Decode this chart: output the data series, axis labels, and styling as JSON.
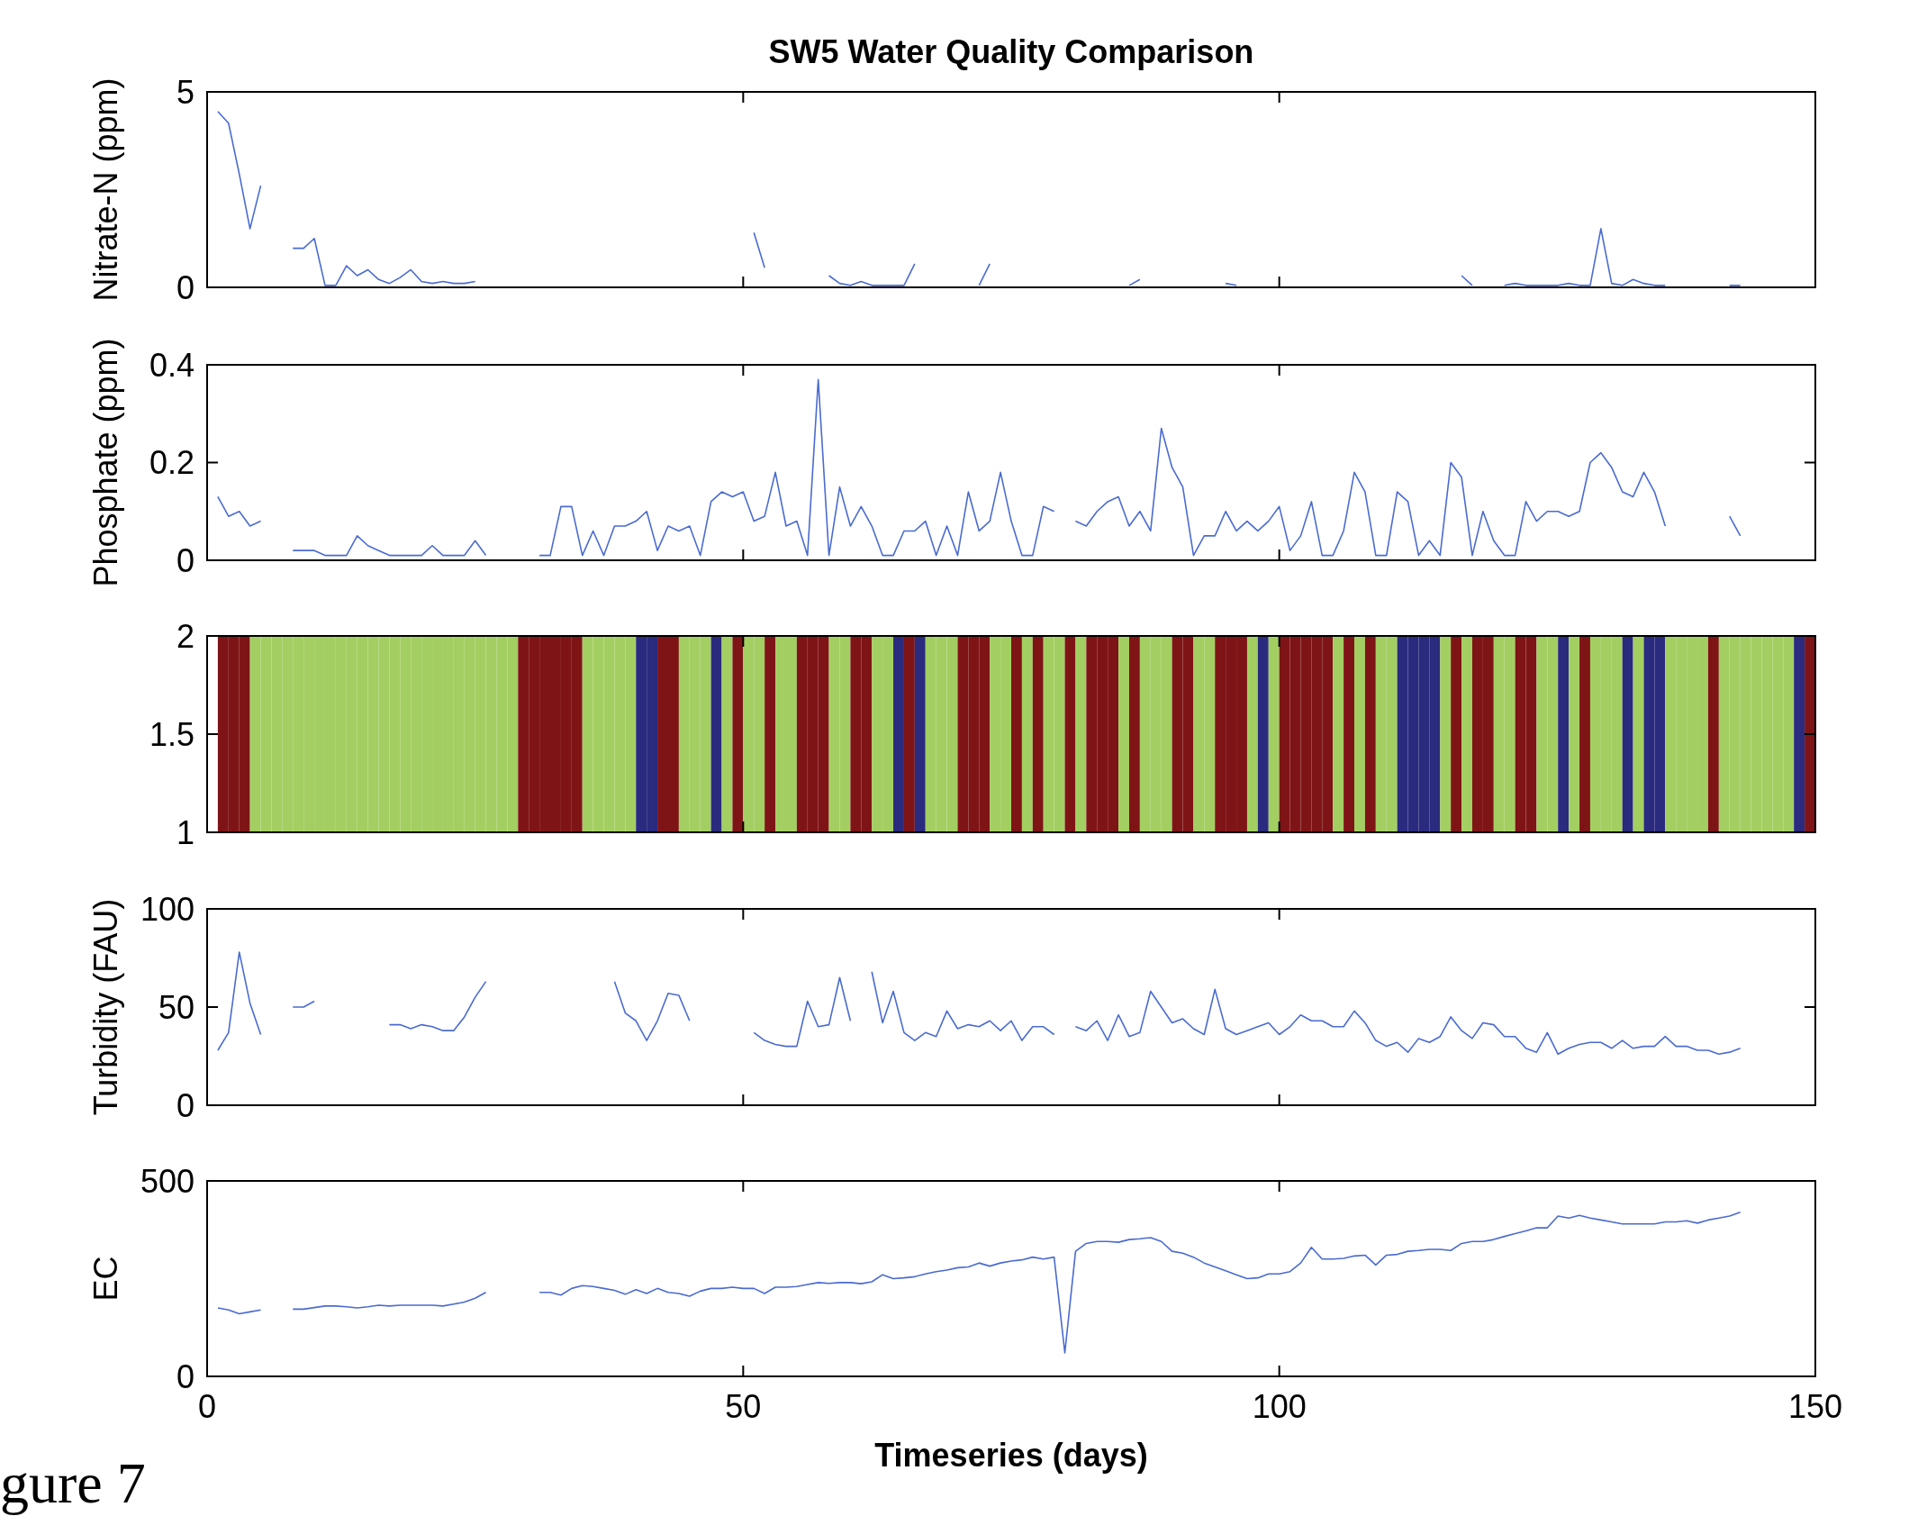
{
  "chart_data": [
    {
      "type": "line",
      "title": "SW5 Water Quality Comparison",
      "ylabel": "Nitrate-N (ppm)",
      "xlim": [
        0,
        150
      ],
      "xticks": [
        0,
        50,
        100,
        150
      ],
      "ylim": [
        0,
        5
      ],
      "yticks": [
        0,
        5
      ],
      "tick_labels": "y",
      "line_style": "solid",
      "x": [
        1,
        2,
        3,
        4,
        5,
        6,
        7,
        8,
        9,
        10,
        11,
        12,
        13,
        14,
        15,
        16,
        17,
        18,
        19,
        20,
        21,
        22,
        23,
        24,
        25,
        26,
        27,
        28,
        29,
        30,
        31,
        32,
        33,
        34,
        35,
        36,
        37,
        38,
        39,
        40,
        41,
        42,
        43,
        44,
        45,
        46,
        47,
        48,
        49,
        50,
        51,
        52,
        53,
        54,
        55,
        56,
        57,
        58,
        59,
        60,
        61,
        62,
        63,
        64,
        65,
        66,
        67,
        68,
        69,
        70,
        71,
        72,
        73,
        74,
        75,
        76,
        77,
        78,
        79,
        80,
        81,
        82,
        83,
        84,
        85,
        86,
        87,
        88,
        89,
        90,
        91,
        92,
        93,
        94,
        95,
        96,
        97,
        98,
        99,
        100,
        101,
        102,
        103,
        104,
        105,
        106,
        107,
        108,
        109,
        110,
        111,
        112,
        113,
        114,
        115,
        116,
        117,
        118,
        119,
        120,
        121,
        122,
        123,
        124,
        125,
        126,
        127,
        128,
        129,
        130,
        131,
        132,
        133,
        134,
        135,
        136,
        137,
        138,
        139,
        140,
        141,
        142,
        143
      ],
      "series": [
        {
          "color": "#4a6bd0",
          "values": [
            4.5,
            4.2,
            2.9,
            1.5,
            2.6,
            null,
            null,
            1.0,
            1.0,
            1.25,
            0.05,
            0.05,
            0.55,
            0.3,
            0.45,
            0.2,
            0.1,
            0.25,
            0.45,
            0.15,
            0.1,
            0.15,
            0.1,
            0.1,
            0.15,
            null,
            null,
            null,
            null,
            null,
            null,
            null,
            null,
            null,
            null,
            null,
            null,
            null,
            null,
            null,
            null,
            null,
            null,
            null,
            null,
            null,
            null,
            null,
            null,
            null,
            1.4,
            0.5,
            null,
            null,
            null,
            null,
            null,
            0.3,
            0.1,
            0.05,
            0.15,
            0.05,
            0.05,
            0.05,
            0.05,
            0.6,
            null,
            null,
            null,
            null,
            null,
            0.05,
            0.6,
            null,
            null,
            null,
            null,
            null,
            null,
            null,
            null,
            null,
            null,
            null,
            null,
            0.05,
            0.2,
            null,
            null,
            null,
            null,
            null,
            null,
            null,
            0.1,
            0.05,
            null,
            null,
            null,
            null,
            null,
            null,
            null,
            null,
            null,
            null,
            null,
            null,
            null,
            null,
            null,
            null,
            null,
            null,
            null,
            null,
            0.3,
            0.05,
            null,
            null,
            0.05,
            0.1,
            0.05,
            0.05,
            0.05,
            0.05,
            0.1,
            0.05,
            0.05,
            1.5,
            0.1,
            0.05,
            0.2,
            0.1,
            0.05,
            0.05,
            null,
            null,
            null,
            null,
            null,
            0.05,
            0.05
          ]
        }
      ]
    },
    {
      "type": "line",
      "ylabel": "Phosphate (ppm)",
      "xlim": [
        0,
        150
      ],
      "xticks": [
        0,
        50,
        100,
        150
      ],
      "ylim": [
        0,
        0.4
      ],
      "yticks": [
        0,
        0.2,
        0.4
      ],
      "tick_labels": "y",
      "line_style": "solid",
      "x": [
        1,
        2,
        3,
        4,
        5,
        6,
        7,
        8,
        9,
        10,
        11,
        12,
        13,
        14,
        15,
        16,
        17,
        18,
        19,
        20,
        21,
        22,
        23,
        24,
        25,
        26,
        27,
        28,
        29,
        30,
        31,
        32,
        33,
        34,
        35,
        36,
        37,
        38,
        39,
        40,
        41,
        42,
        43,
        44,
        45,
        46,
        47,
        48,
        49,
        50,
        51,
        52,
        53,
        54,
        55,
        56,
        57,
        58,
        59,
        60,
        61,
        62,
        63,
        64,
        65,
        66,
        67,
        68,
        69,
        70,
        71,
        72,
        73,
        74,
        75,
        76,
        77,
        78,
        79,
        80,
        81,
        82,
        83,
        84,
        85,
        86,
        87,
        88,
        89,
        90,
        91,
        92,
        93,
        94,
        95,
        96,
        97,
        98,
        99,
        100,
        101,
        102,
        103,
        104,
        105,
        106,
        107,
        108,
        109,
        110,
        111,
        112,
        113,
        114,
        115,
        116,
        117,
        118,
        119,
        120,
        121,
        122,
        123,
        124,
        125,
        126,
        127,
        128,
        129,
        130,
        131,
        132,
        133,
        134,
        135,
        136,
        137,
        138,
        139,
        140,
        141,
        142,
        143
      ],
      "series": [
        {
          "color": "#4a6bd0",
          "values": [
            0.13,
            0.09,
            0.1,
            0.07,
            0.08,
            null,
            null,
            0.02,
            0.02,
            0.02,
            0.01,
            0.01,
            0.01,
            0.05,
            0.03,
            0.02,
            0.01,
            0.01,
            0.01,
            0.01,
            0.03,
            0.01,
            0.01,
            0.01,
            0.04,
            0.01,
            null,
            null,
            null,
            null,
            0.01,
            0.01,
            0.11,
            0.11,
            0.01,
            0.06,
            0.01,
            0.07,
            0.07,
            0.08,
            0.1,
            0.02,
            0.07,
            0.06,
            0.07,
            0.01,
            0.12,
            0.14,
            0.13,
            0.14,
            0.08,
            0.09,
            0.18,
            0.07,
            0.08,
            0.01,
            0.37,
            0.01,
            0.15,
            0.07,
            0.11,
            0.07,
            0.01,
            0.01,
            0.06,
            0.06,
            0.08,
            0.01,
            0.07,
            0.01,
            0.14,
            0.06,
            0.08,
            0.18,
            0.08,
            0.01,
            0.01,
            0.11,
            0.1,
            null,
            0.08,
            0.07,
            0.1,
            0.12,
            0.13,
            0.07,
            0.1,
            0.06,
            0.27,
            0.19,
            0.15,
            0.01,
            0.05,
            0.05,
            0.1,
            0.06,
            0.08,
            0.06,
            0.08,
            0.11,
            0.02,
            0.05,
            0.12,
            0.01,
            0.01,
            0.06,
            0.18,
            0.14,
            0.01,
            0.01,
            0.14,
            0.12,
            0.01,
            0.04,
            0.01,
            0.2,
            0.17,
            0.01,
            0.1,
            0.04,
            0.01,
            0.01,
            0.12,
            0.08,
            0.1,
            0.1,
            0.09,
            0.1,
            0.2,
            0.22,
            0.19,
            0.14,
            0.13,
            0.18,
            0.14,
            0.07,
            null,
            null,
            null,
            null,
            null,
            0.09,
            0.05
          ]
        }
      ]
    },
    {
      "type": "bar",
      "xlim": [
        0,
        150
      ],
      "xticks": [
        0,
        50,
        100,
        150
      ],
      "ylim": [
        1,
        2
      ],
      "yticks": [
        1,
        1.5,
        2
      ],
      "tick_labels": "y",
      "x": [
        1,
        2,
        3,
        4,
        5,
        6,
        7,
        8,
        9,
        10,
        11,
        12,
        13,
        14,
        15,
        16,
        17,
        18,
        19,
        20,
        21,
        22,
        23,
        24,
        25,
        26,
        27,
        28,
        29,
        30,
        31,
        32,
        33,
        34,
        35,
        36,
        37,
        38,
        39,
        40,
        41,
        42,
        43,
        44,
        45,
        46,
        47,
        48,
        49,
        50,
        51,
        52,
        53,
        54,
        55,
        56,
        57,
        58,
        59,
        60,
        61,
        62,
        63,
        64,
        65,
        66,
        67,
        68,
        69,
        70,
        71,
        72,
        73,
        74,
        75,
        76,
        77,
        78,
        79,
        80,
        81,
        82,
        83,
        84,
        85,
        86,
        87,
        88,
        89,
        90,
        91,
        92,
        93,
        94,
        95,
        96,
        97,
        98,
        99,
        100,
        101,
        102,
        103,
        104,
        105,
        106,
        107,
        108,
        109,
        110,
        111,
        112,
        113,
        114,
        115,
        116,
        117,
        118,
        119,
        120,
        121,
        122,
        123,
        124,
        125,
        126,
        127,
        128,
        129,
        130,
        131,
        132,
        133,
        134,
        135,
        136,
        137,
        138,
        139,
        140,
        141,
        142,
        143,
        144,
        145,
        146,
        147,
        148,
        149
      ],
      "values": [
        2,
        2,
        2,
        2,
        2,
        2,
        2,
        2,
        2,
        2,
        2,
        2,
        2,
        2,
        2,
        2,
        2,
        2,
        2,
        2,
        2,
        2,
        2,
        2,
        2,
        2,
        2,
        2,
        2,
        2,
        2,
        2,
        2,
        2,
        2,
        2,
        2,
        2,
        2,
        2,
        2,
        2,
        2,
        2,
        2,
        2,
        2,
        2,
        2,
        2,
        2,
        2,
        2,
        2,
        2,
        2,
        2,
        2,
        2,
        2,
        2,
        2,
        2,
        2,
        2,
        2,
        2,
        2,
        2,
        2,
        2,
        2,
        2,
        2,
        2,
        2,
        2,
        2,
        2,
        2,
        2,
        2,
        2,
        2,
        2,
        2,
        2,
        2,
        2,
        2,
        2,
        2,
        2,
        2,
        2,
        2,
        2,
        2,
        2,
        2,
        2,
        2,
        2,
        2,
        2,
        2,
        2,
        2,
        2,
        2,
        2,
        2,
        2,
        2,
        2,
        2,
        2,
        2,
        2,
        2,
        2,
        2,
        2,
        2,
        2,
        2,
        2,
        2,
        2,
        2,
        2,
        2,
        2,
        2,
        2,
        2,
        2,
        2,
        2,
        2,
        2,
        2,
        2,
        2,
        2,
        2,
        2,
        2,
        2
      ],
      "colors": [
        "#7f1416",
        "#7f1416",
        "#7f1416",
        "#a3cf62",
        "#a3cf62",
        "#a3cf62",
        "#a3cf62",
        "#a3cf62",
        "#a3cf62",
        "#a3cf62",
        "#a3cf62",
        "#a3cf62",
        "#a3cf62",
        "#a3cf62",
        "#a3cf62",
        "#a3cf62",
        "#a3cf62",
        "#a3cf62",
        "#a3cf62",
        "#a3cf62",
        "#a3cf62",
        "#a3cf62",
        "#a3cf62",
        "#a3cf62",
        "#a3cf62",
        "#a3cf62",
        "#a3cf62",
        "#a3cf62",
        "#7f1416",
        "#7f1416",
        "#7f1416",
        "#7f1416",
        "#7f1416",
        "#7f1416",
        "#a3cf62",
        "#a3cf62",
        "#a3cf62",
        "#a3cf62",
        "#a3cf62",
        "#2a2a7e",
        "#2a2a7e",
        "#7f1416",
        "#7f1416",
        "#a3cf62",
        "#a3cf62",
        "#a3cf62",
        "#2a2a7e",
        "#a3cf62",
        "#7f1416",
        "#a3cf62",
        "#a3cf62",
        "#7f1416",
        "#a3cf62",
        "#a3cf62",
        "#7f1416",
        "#7f1416",
        "#7f1416",
        "#a3cf62",
        "#a3cf62",
        "#7f1416",
        "#7f1416",
        "#a3cf62",
        "#a3cf62",
        "#2a2a7e",
        "#7f1416",
        "#2a2a7e",
        "#a3cf62",
        "#a3cf62",
        "#a3cf62",
        "#7f1416",
        "#7f1416",
        "#7f1416",
        "#a3cf62",
        "#a3cf62",
        "#7f1416",
        "#a3cf62",
        "#7f1416",
        "#a3cf62",
        "#a3cf62",
        "#7f1416",
        "#a3cf62",
        "#7f1416",
        "#7f1416",
        "#7f1416",
        "#a3cf62",
        "#7f1416",
        "#a3cf62",
        "#a3cf62",
        "#a3cf62",
        "#7f1416",
        "#7f1416",
        "#a3cf62",
        "#a3cf62",
        "#7f1416",
        "#7f1416",
        "#7f1416",
        "#a3cf62",
        "#2a2a7e",
        "#a3cf62",
        "#7f1416",
        "#7f1416",
        "#7f1416",
        "#7f1416",
        "#7f1416",
        "#a3cf62",
        "#7f1416",
        "#a3cf62",
        "#7f1416",
        "#a3cf62",
        "#a3cf62",
        "#2a2a7e",
        "#2a2a7e",
        "#2a2a7e",
        "#2a2a7e",
        "#a3cf62",
        "#7f1416",
        "#a3cf62",
        "#7f1416",
        "#7f1416",
        "#a3cf62",
        "#a3cf62",
        "#7f1416",
        "#7f1416",
        "#a3cf62",
        "#a3cf62",
        "#2a2a7e",
        "#a3cf62",
        "#7f1416",
        "#a3cf62",
        "#a3cf62",
        "#a3cf62",
        "#2a2a7e",
        "#a3cf62",
        "#2a2a7e",
        "#2a2a7e",
        "#a3cf62",
        "#a3cf62",
        "#a3cf62",
        "#a3cf62",
        "#7f1416",
        "#a3cf62",
        "#a3cf62",
        "#a3cf62",
        "#a3cf62",
        "#a3cf62",
        "#a3cf62",
        "#a3cf62",
        "#2a2a7e",
        "#7f1416"
      ]
    },
    {
      "type": "line",
      "ylabel": "Turbidity (FAU)",
      "xlim": [
        0,
        150
      ],
      "xticks": [
        0,
        50,
        100,
        150
      ],
      "ylim": [
        0,
        100
      ],
      "yticks": [
        0,
        50,
        100
      ],
      "tick_labels": "y",
      "line_style": "solid",
      "x": [
        1,
        2,
        3,
        4,
        5,
        6,
        7,
        8,
        9,
        10,
        11,
        12,
        13,
        14,
        15,
        16,
        17,
        18,
        19,
        20,
        21,
        22,
        23,
        24,
        25,
        26,
        27,
        28,
        29,
        30,
        31,
        32,
        33,
        34,
        35,
        36,
        37,
        38,
        39,
        40,
        41,
        42,
        43,
        44,
        45,
        46,
        47,
        48,
        49,
        50,
        51,
        52,
        53,
        54,
        55,
        56,
        57,
        58,
        59,
        60,
        61,
        62,
        63,
        64,
        65,
        66,
        67,
        68,
        69,
        70,
        71,
        72,
        73,
        74,
        75,
        76,
        77,
        78,
        79,
        80,
        81,
        82,
        83,
        84,
        85,
        86,
        87,
        88,
        89,
        90,
        91,
        92,
        93,
        94,
        95,
        96,
        97,
        98,
        99,
        100,
        101,
        102,
        103,
        104,
        105,
        106,
        107,
        108,
        109,
        110,
        111,
        112,
        113,
        114,
        115,
        116,
        117,
        118,
        119,
        120,
        121,
        122,
        123,
        124,
        125,
        126,
        127,
        128,
        129,
        130,
        131,
        132,
        133,
        134,
        135,
        136,
        137,
        138,
        139,
        140,
        141,
        142,
        143
      ],
      "series": [
        {
          "color": "#4a6bd0",
          "values": [
            28,
            37,
            78,
            52,
            36,
            null,
            null,
            50,
            50,
            53,
            null,
            null,
            null,
            null,
            null,
            null,
            41,
            41,
            39,
            41,
            40,
            38,
            38,
            45,
            55,
            63,
            null,
            null,
            null,
            null,
            null,
            null,
            null,
            null,
            null,
            null,
            null,
            63,
            47,
            43,
            33,
            43,
            57,
            56,
            43,
            null,
            null,
            null,
            null,
            null,
            37,
            33,
            31,
            30,
            30,
            53,
            40,
            41,
            65,
            43,
            null,
            68,
            42,
            58,
            37,
            33,
            37,
            35,
            48,
            39,
            41,
            40,
            43,
            38,
            43,
            33,
            40,
            40,
            36,
            null,
            40,
            38,
            43,
            33,
            46,
            35,
            37,
            58,
            50,
            42,
            44,
            39,
            36,
            59,
            39,
            36,
            38,
            40,
            42,
            36,
            40,
            46,
            43,
            43,
            40,
            40,
            48,
            42,
            33,
            30,
            32,
            27,
            34,
            32,
            35,
            45,
            38,
            34,
            42,
            41,
            35,
            35,
            29,
            27,
            37,
            26,
            29,
            31,
            32,
            32,
            29,
            33,
            29,
            30,
            30,
            35,
            30,
            30,
            28,
            28,
            26,
            27,
            29
          ]
        }
      ]
    },
    {
      "type": "line",
      "ylabel": "EC",
      "xlabel": "Timeseries (days)",
      "xlim": [
        0,
        150
      ],
      "xticks": [
        0,
        50,
        100,
        150
      ],
      "ylim": [
        0,
        500
      ],
      "yticks": [
        0,
        500
      ],
      "line_style": "solid",
      "annotations": [
        "gure 7"
      ],
      "x": [
        1,
        2,
        3,
        4,
        5,
        6,
        7,
        8,
        9,
        10,
        11,
        12,
        13,
        14,
        15,
        16,
        17,
        18,
        19,
        20,
        21,
        22,
        23,
        24,
        25,
        26,
        27,
        28,
        29,
        30,
        31,
        32,
        33,
        34,
        35,
        36,
        37,
        38,
        39,
        40,
        41,
        42,
        43,
        44,
        45,
        46,
        47,
        48,
        49,
        50,
        51,
        52,
        53,
        54,
        55,
        56,
        57,
        58,
        59,
        60,
        61,
        62,
        63,
        64,
        65,
        66,
        67,
        68,
        69,
        70,
        71,
        72,
        73,
        74,
        75,
        76,
        77,
        78,
        79,
        80,
        81,
        82,
        83,
        84,
        85,
        86,
        87,
        88,
        89,
        90,
        91,
        92,
        93,
        94,
        95,
        96,
        97,
        98,
        99,
        100,
        101,
        102,
        103,
        104,
        105,
        106,
        107,
        108,
        109,
        110,
        111,
        112,
        113,
        114,
        115,
        116,
        117,
        118,
        119,
        120,
        121,
        122,
        123,
        124,
        125,
        126,
        127,
        128,
        129,
        130,
        131,
        132,
        133,
        134,
        135,
        136,
        137,
        138,
        139,
        140,
        141,
        142,
        143
      ],
      "series": [
        {
          "color": "#4a6bd0",
          "values": [
            175,
            170,
            160,
            165,
            170,
            null,
            null,
            172,
            172,
            176,
            180,
            180,
            178,
            175,
            178,
            182,
            180,
            182,
            182,
            182,
            182,
            180,
            185,
            190,
            200,
            215,
            null,
            null,
            null,
            null,
            215,
            215,
            208,
            225,
            232,
            230,
            225,
            220,
            210,
            222,
            212,
            225,
            215,
            212,
            205,
            218,
            225,
            225,
            228,
            225,
            225,
            212,
            228,
            228,
            230,
            235,
            240,
            238,
            240,
            240,
            237,
            242,
            260,
            250,
            252,
            255,
            262,
            268,
            272,
            278,
            280,
            290,
            282,
            290,
            295,
            298,
            305,
            300,
            305,
            60,
            320,
            340,
            345,
            345,
            343,
            350,
            352,
            355,
            345,
            320,
            315,
            305,
            290,
            280,
            270,
            260,
            250,
            252,
            262,
            262,
            268,
            290,
            330,
            300,
            300,
            302,
            308,
            310,
            285,
            310,
            312,
            320,
            322,
            325,
            325,
            322,
            340,
            345,
            345,
            350,
            358,
            365,
            372,
            380,
            380,
            410,
            405,
            412,
            405,
            400,
            395,
            390,
            390,
            390,
            390,
            395,
            395,
            398,
            392,
            400,
            405,
            410,
            420
          ]
        }
      ]
    }
  ]
}
